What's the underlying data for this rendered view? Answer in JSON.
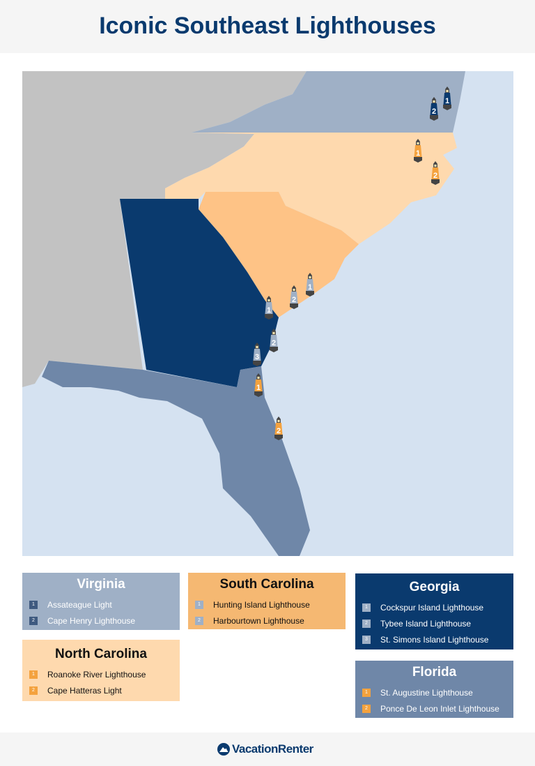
{
  "title": "Iconic Southeast Lighthouses",
  "colors": {
    "ocean": "#d5e2f1",
    "other_land": "#c2c2c2",
    "virginia": "#9fb0c6",
    "north_carolina": "#fed9ae",
    "south_carolina": "#f5b872",
    "georgia": "#0a3a6e",
    "florida": "#6f87a8",
    "marker_orange": "#f4a23e"
  },
  "legend": [
    {
      "state": "Virginia",
      "items": [
        {
          "n": "1",
          "name": "Assateague Light"
        },
        {
          "n": "2",
          "name": "Cape Henry Lighthouse"
        }
      ]
    },
    {
      "state": "South Carolina",
      "items": [
        {
          "n": "1",
          "name": "Hunting Island Lighthouse"
        },
        {
          "n": "2",
          "name": "Harbourtown Lighthouse"
        }
      ]
    },
    {
      "state": "North Carolina",
      "items": [
        {
          "n": "1",
          "name": "Roanoke River Lighthouse"
        },
        {
          "n": "2",
          "name": "Cape Hatteras Light"
        }
      ]
    },
    {
      "state": "Georgia",
      "items": [
        {
          "n": "1",
          "name": "Cockspur Island Lighthouse"
        },
        {
          "n": "2",
          "name": "Tybee Island Lighthouse"
        },
        {
          "n": "3",
          "name": "St. Simons Island Lighthouse"
        }
      ]
    },
    {
      "state": "Florida",
      "items": [
        {
          "n": "1",
          "name": "St. Augustine Lighthouse"
        },
        {
          "n": "2",
          "name": "Ponce De Leon Inlet Lighthouse"
        }
      ]
    }
  ],
  "markers": [
    {
      "state": "Virginia",
      "n": "1"
    },
    {
      "state": "Virginia",
      "n": "2"
    },
    {
      "state": "North Carolina",
      "n": "1"
    },
    {
      "state": "North Carolina",
      "n": "2"
    },
    {
      "state": "South Carolina",
      "n": "1"
    },
    {
      "state": "South Carolina",
      "n": "2"
    },
    {
      "state": "Georgia",
      "n": "1"
    },
    {
      "state": "Georgia",
      "n": "2"
    },
    {
      "state": "Georgia",
      "n": "3"
    },
    {
      "state": "Florida",
      "n": "1"
    },
    {
      "state": "Florida",
      "n": "2"
    }
  ],
  "footer": {
    "brand": "VacationRenter"
  }
}
